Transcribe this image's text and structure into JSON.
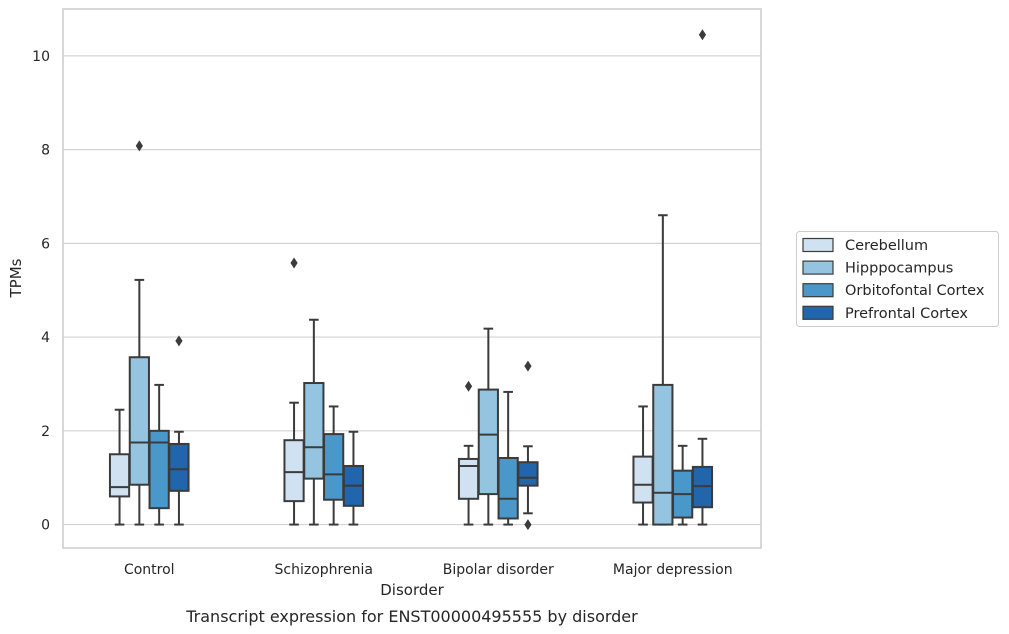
{
  "chart_data": {
    "type": "box",
    "caption": "Transcript expression for ENST00000495555 by disorder",
    "xlabel": "Disorder",
    "ylabel": "TPMs",
    "ylim": [
      -0.5,
      11
    ],
    "yticks": [
      0,
      2,
      4,
      6,
      8,
      10
    ],
    "grid": true,
    "legend_position": "right",
    "categories": [
      "Control",
      "Schizophrenia",
      "Bipolar disorder",
      "Major depression"
    ],
    "series": [
      {
        "name": "Cerebellum",
        "color": "#d0e1f2",
        "boxes": [
          {
            "whisker_low": 0,
            "q1": 0.6,
            "median": 0.8,
            "q3": 1.5,
            "whisker_high": 2.45,
            "outliers": []
          },
          {
            "whisker_low": 0,
            "q1": 0.5,
            "median": 1.12,
            "q3": 1.8,
            "whisker_high": 2.6,
            "outliers": [
              5.58
            ]
          },
          {
            "whisker_low": 0,
            "q1": 0.55,
            "median": 1.25,
            "q3": 1.4,
            "whisker_high": 1.68,
            "outliers": [
              2.95
            ]
          },
          {
            "whisker_low": 0,
            "q1": 0.47,
            "median": 0.85,
            "q3": 1.45,
            "whisker_high": 2.52,
            "outliers": []
          }
        ]
      },
      {
        "name": "Hipppocampus",
        "color": "#94c4df",
        "boxes": [
          {
            "whisker_low": 0,
            "q1": 0.85,
            "median": 1.75,
            "q3": 3.57,
            "whisker_high": 5.22,
            "outliers": [
              8.08
            ]
          },
          {
            "whisker_low": 0,
            "q1": 0.98,
            "median": 1.65,
            "q3": 3.02,
            "whisker_high": 4.37,
            "outliers": []
          },
          {
            "whisker_low": 0,
            "q1": 0.65,
            "median": 1.92,
            "q3": 2.88,
            "whisker_high": 4.18,
            "outliers": []
          },
          {
            "whisker_low": 0,
            "q1": 0,
            "median": 0.68,
            "q3": 2.98,
            "whisker_high": 6.6,
            "outliers": []
          }
        ]
      },
      {
        "name": "Orbitofontal Cortex",
        "color": "#4a98c9",
        "boxes": [
          {
            "whisker_low": 0,
            "q1": 0.35,
            "median": 1.75,
            "q3": 2.0,
            "whisker_high": 2.98,
            "outliers": []
          },
          {
            "whisker_low": 0,
            "q1": 0.53,
            "median": 1.07,
            "q3": 1.93,
            "whisker_high": 2.52,
            "outliers": []
          },
          {
            "whisker_low": 0,
            "q1": 0.13,
            "median": 0.55,
            "q3": 1.42,
            "whisker_high": 2.83,
            "outliers": []
          },
          {
            "whisker_low": 0,
            "q1": 0.15,
            "median": 0.65,
            "q3": 1.15,
            "whisker_high": 1.68,
            "outliers": []
          }
        ]
      },
      {
        "name": "Prefrontal Cortex",
        "color": "#2166ac",
        "boxes": [
          {
            "whisker_low": 0,
            "q1": 0.72,
            "median": 1.18,
            "q3": 1.72,
            "whisker_high": 1.98,
            "outliers": [
              3.92
            ]
          },
          {
            "whisker_low": 0,
            "q1": 0.4,
            "median": 0.83,
            "q3": 1.25,
            "whisker_high": 1.98,
            "outliers": []
          },
          {
            "whisker_low": 0.24,
            "q1": 0.83,
            "median": 1.0,
            "q3": 1.33,
            "whisker_high": 1.67,
            "outliers": [
              3.38,
              0
            ]
          },
          {
            "whisker_low": 0,
            "q1": 0.37,
            "median": 0.82,
            "q3": 1.23,
            "whisker_high": 1.83,
            "outliers": [
              10.45
            ]
          }
        ]
      }
    ]
  }
}
